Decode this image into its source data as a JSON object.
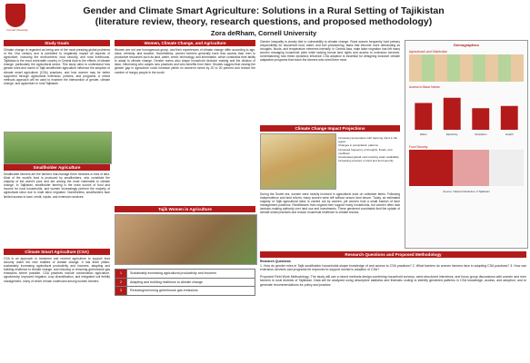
{
  "header": {
    "logo_text": "Cornell University",
    "title_line1": "Gender and Climate Smart Agriculture: Solutions in a Rural Setting of Tajikistan",
    "title_line2": "(literature review, theory, research questions, and proposed methodology)",
    "author": "Zora deRham, Cornell University"
  },
  "sections": {
    "study_goals": "Study Goals",
    "smallholder": "Smallholder Agriculture",
    "csa": "Climate Smart Agriculture (CSA)",
    "women": "Women, Climate Change, and Agriculture",
    "tajik_women": "Tajik Women in Agriculture",
    "climate_impact": "Climate Change Impact Projections",
    "rq": "Research Questions and Proposed Methodology"
  },
  "texts": {
    "study_goals": "Climate change is regarded as being one of the most pressing global problems of the 21st century and is predicted to negatively impact all aspects of agriculture, including the environment, food security, and rural livelihoods. Tajikistan is the most vulnerable country in Central Asia to the effects of climate change, particularly the agricultural sector. This study aims to understand how gender roles and norms in Tajik smallholder agriculture influence the adoption of climate smart agriculture (CSA) practices, and how women may be better supported through agricultural extension, policies, and programs. A mixed methods approach will be used to examine the intersection of gender, climate change, and agriculture in rural Tajikistan.",
    "smallholder": "Smallholder farmers are the farmers that manage three hectares or less of land. Most of the world's food is produced by smallholders, who constitute the majority of the world's poor and are among the most vulnerable to climate change. In Tajikistan, smallholder farming is the main source of food and income for rural households, and women increasingly perform the majority of agricultural labor due to male labor migration. Nonetheless, smallholders face limited access to land, credit, inputs, and extension services.",
    "csa": "CSA is an approach to transform and reorient agriculture to support food security under the new realities of climate change. It has three pillars: sustainably increasing agricultural productivity and incomes, adapting and building resilience to climate change, and reducing or removing greenhouse gas emissions where possible. CSA practices include conservation agriculture, agroforestry, improved irrigation, crop diversification, and integrated soil fertility management, many of which remain underused among women farmers.",
    "women": "Women are not one homogenous group, and their experiences of climate change differ according to age, class, ethnicity, and location. Nonetheless, women farmers generally have less access than men to productive resources such as land, water, credit, technology, and information, which constrains their ability to adapt to climate change. Gender norms also shape household decision making and the division of labor, influencing who adopts new practices and who benefits from them. Studies suggest that closing the gender gap in agriculture could increase yields on women's farms by 20 to 30 percent and reduce the number of hungry people in the world.",
    "women_right": "Gender inequality is closely tied to vulnerability to climate change. Rural women frequently hold primary responsibility for household food, water, and fuel provisioning, tasks that become more demanding as droughts, floods, and temperature extremes intensify. In Central Asia, male labor migration has left many women managing household plots while lacking formal land rights and access to extension services. Understanding how these dynamics influence CSA adoption is essential for designing inclusive climate adaptation programs that reach the farmers who need them most.",
    "tajik_women": "During the Soviet era, women were heavily involved in agricultural work on collective farms. Following independence and land reform, many women were left without secure land tenure. Today, an estimated majority of Tajik agricultural labor is carried out by women, yet women hold a small fraction of farm management positions. Remittances from migrant men support many households, but women often lack decision-making authority over land use and investments. These gendered constraints limit the uptake of climate smart practices and reduce household resilience to climate shocks.",
    "rq_intro": "Research Questions",
    "rq_list": "1. How do gender roles in Tajik smallholder households shape knowledge of and access to CSA practices? 2. What barriers do women farmers face in adopting CSA practices? 3. How can extension services and programs be improved to support women's adoption of CSA?",
    "rq_method": "Proposed Field Work Methodology: The study will use a mixed methods design combining household surveys, semi-structured interviews, and focus group discussions with women and men farmers in rural districts of Tajikistan. Data will be analyzed using descriptive statistics and thematic coding to identify gendered patterns in CSA knowledge, access, and adoption, and to generate recommendations for policy and practice."
  },
  "csa_table": [
    {
      "n": "1",
      "label": "Sustainably increasing agricultural productivity and incomes"
    },
    {
      "n": "2",
      "label": "Adapting and building resilience to climate change"
    },
    {
      "n": "3",
      "label": "Reducing/removing greenhouse gas emissions"
    }
  ],
  "climate_bullets": [
    "Increasing temperature with warming trend in the region",
    "Changes in precipitation patterns",
    "Increased frequency of droughts, floods, and mudflows",
    "Accelerated glacial melt reducing water availability",
    "Increasing pressure on land and food security"
  ],
  "right_panel": {
    "title": "Demographics",
    "chart_labels": [
      "Agricultural Land Distribution",
      "Access to Basic Needs",
      "Food Security"
    ],
    "caption": "Source: National Statistics of Tajikistan"
  },
  "chart_data": {
    "type": "bar",
    "title": "Access to Basic Needs",
    "categories": [
      "Water",
      "Electricity",
      "Sanitation",
      "Health"
    ],
    "values": [
      72,
      86,
      58,
      64
    ],
    "ylim": [
      0,
      100
    ]
  },
  "colors": {
    "accent": "#b31b1b"
  }
}
